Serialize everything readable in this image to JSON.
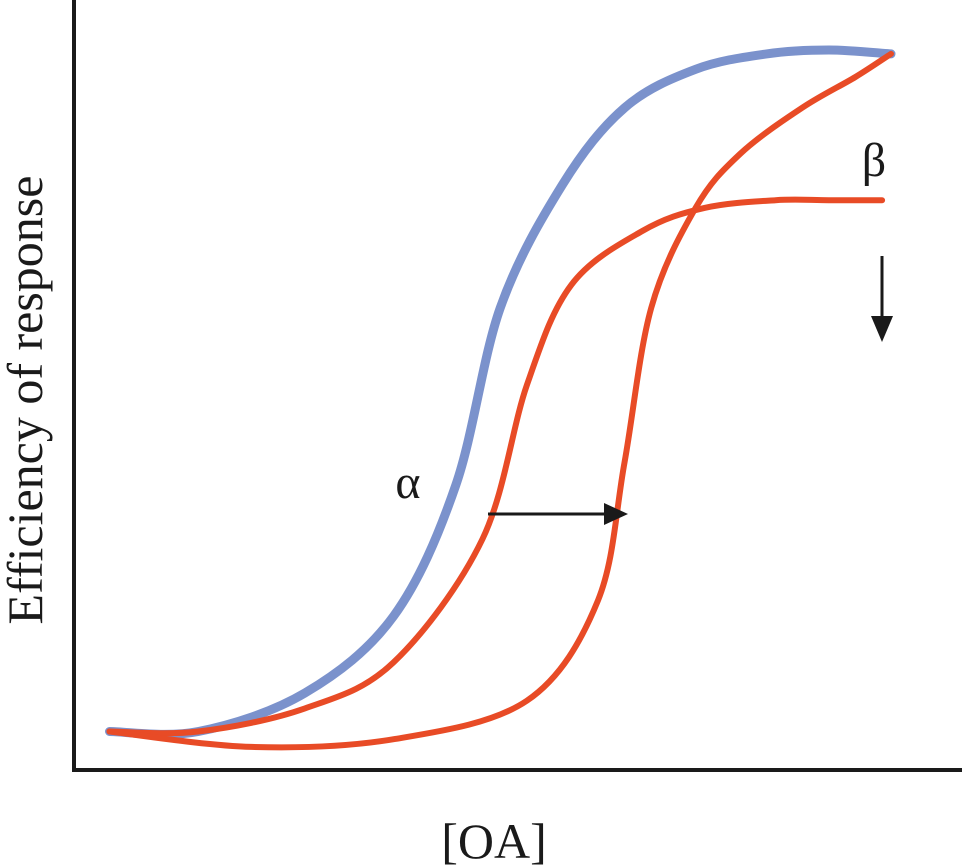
{
  "chart_data": {
    "type": "line",
    "title": "",
    "xlabel": "[OA]",
    "ylabel": "Efficiency of response",
    "grid": false,
    "legend": "none",
    "x_ticks": [],
    "y_ticks": [],
    "xlim": [
      0,
      10
    ],
    "ylim": [
      0,
      1
    ],
    "series": [
      {
        "color": "#7b92cc",
        "x": [
          0.4,
          1.4,
          2.6,
          3.6,
          4.3,
          4.8,
          5.5,
          6.2,
          7.0,
          7.8,
          8.5,
          9.2
        ],
        "y": [
          0.05,
          0.05,
          0.1,
          0.2,
          0.37,
          0.6,
          0.76,
          0.86,
          0.91,
          0.93,
          0.935,
          0.93
        ]
      },
      {
        "color": "#e84b26",
        "x": [
          0.4,
          1.4,
          2.6,
          3.6,
          4.6,
          5.1,
          5.6,
          6.4,
          7.1,
          7.9,
          8.5,
          9.1
        ],
        "y": [
          0.05,
          0.05,
          0.08,
          0.14,
          0.3,
          0.5,
          0.63,
          0.7,
          0.73,
          0.74,
          0.74,
          0.74
        ]
      },
      {
        "color": "#e84b26",
        "x": [
          0.4,
          2.0,
          3.6,
          5.1,
          5.9,
          6.2,
          6.5,
          7.0,
          7.5,
          8.2,
          8.8,
          9.2
        ],
        "y": [
          0.05,
          0.03,
          0.04,
          0.09,
          0.22,
          0.4,
          0.6,
          0.73,
          0.8,
          0.86,
          0.9,
          0.93
        ]
      }
    ],
    "annotations": [
      {
        "text": "α",
        "meaning": "shift of EC50 to the right (arrow →)"
      },
      {
        "text": "β",
        "meaning": "decrease of maximal response (arrow ↓)"
      }
    ],
    "colors": {
      "axis": "#1a1a1a",
      "arrow": "#1a1a1a"
    }
  }
}
